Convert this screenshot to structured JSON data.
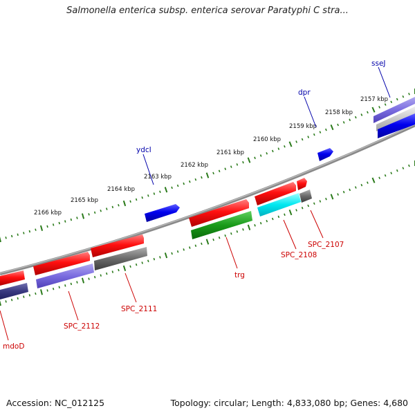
{
  "title": "Salmonella enterica subsp. enterica serovar Paratyphi C stra...",
  "footer": {
    "accession": "Accession: NC_012125",
    "summary": "Topology: circular; Length: 4,833,080 bp; Genes: 4,680"
  },
  "scale_ticks": [
    "2157 kbp",
    "2158 kbp",
    "2159 kbp",
    "2160 kbp",
    "2161 kbp",
    "2162 kbp",
    "2163 kbp",
    "2164 kbp",
    "2165 kbp",
    "2166 kbp"
  ],
  "gene_labels": {
    "ssej": "sseJ",
    "dpr": "dpr",
    "ydci": "ydcI",
    "trg": "trg",
    "spc2107": "SPC_2107",
    "spc2108": "SPC_2108",
    "spc2111": "SPC_2111",
    "spc2112": "SPC_2112",
    "mdod": "mdoD"
  },
  "colors": {
    "forward_label": "#0000aa",
    "reverse_label": "#cc0000",
    "tick_green": "#2a7a1a",
    "backbone": "#808080"
  }
}
